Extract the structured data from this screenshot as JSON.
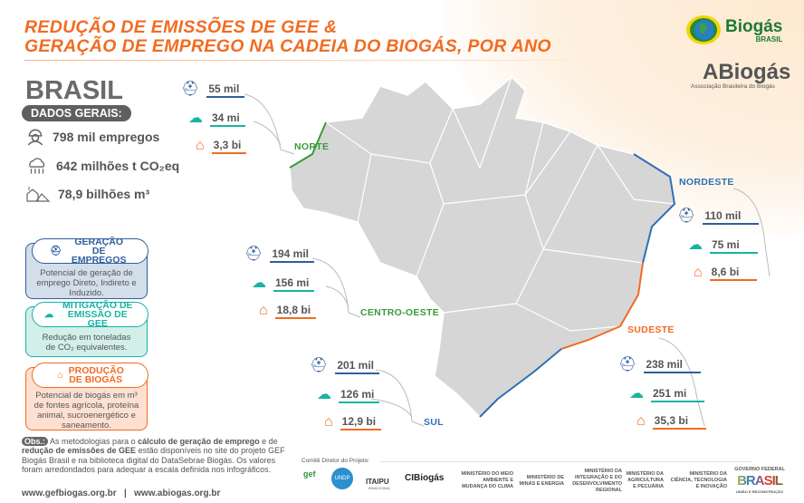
{
  "title": {
    "line1": "REDUÇÃO DE EMISSÕES DE GEE &",
    "line2": "GERAÇÃO DE EMPREGO NA CADEIA DO BIOGÁS, POR ANO"
  },
  "logos": {
    "biogas_brasil": "Biogás",
    "biogas_brasil_sub": "BRASIL",
    "abiogas": "ABiogás",
    "abiogas_sub": "Associação Brasileira do Biogás"
  },
  "brasil": {
    "name": "BRASIL",
    "pill": "DADOS GERAIS:",
    "empregos": "798 mil empregos",
    "co2": "642 milhões t CO₂eq",
    "biogas": "78,9 bilhões m³"
  },
  "legend": [
    {
      "title": "GERAÇÃO DE EMPREGOS",
      "desc": "Potencial de geração de emprego Direto, Indireto e Induzido.",
      "color": "#2f5e9e",
      "bg": "#d3deeb"
    },
    {
      "title": "MITIGAÇÃO DE EMISSÃO DE GEE",
      "desc": "Redução em toneladas de CO₂ equivalentes.",
      "color": "#19b3a4",
      "bg": "#d2efe9"
    },
    {
      "title": "PRODUÇÃO DE BIOGÁS",
      "desc": "Potencial de biogás em m³ de fontes agrícola, proteína animal, sucroenergético e saneamento.",
      "color": "#f26b21",
      "bg": "#fde0d2"
    }
  ],
  "obs": {
    "tag": "Obs.:",
    "text1": " As metodologias para o ",
    "bold1": "cálculo de geração de emprego",
    "text2": " e de ",
    "bold2": "redução de emissões de GEE",
    "text3": " estão disponíveis no site do projeto GEF Biogás Brasil e na biblioteca digital do DataSebrae Biogás. Os valores foram arredondados para adequar a escala definida nos infográficos."
  },
  "urls": {
    "url1": "www.gefbiogas.org.br",
    "sep": "|",
    "url2": "www.abiogas.org.br"
  },
  "regions": {
    "norte": {
      "name": "NORTE",
      "empregos": "55 mil",
      "co2": "34 mi",
      "biogas": "3,3 bi"
    },
    "centro_oeste": {
      "name": "CENTRO-OESTE",
      "empregos": "194 mil",
      "co2": "156 mi",
      "biogas": "18,8 bi"
    },
    "sul": {
      "name": "SUL",
      "empregos": "201 mil",
      "co2": "126 mi",
      "biogas": "12,9 bi"
    },
    "nordeste": {
      "name": "NORDESTE",
      "empregos": "110 mil",
      "co2": "75 mi",
      "biogas": "8,6 bi"
    },
    "sudeste": {
      "name": "SUDESTE",
      "empregos": "238 mil",
      "co2": "251 mi",
      "biogas": "35,3 bi"
    }
  },
  "colors": {
    "orange": "#f26b21",
    "green": "#3a9a3a",
    "blue": "#2f6fb5",
    "teal": "#19b3a4",
    "navy": "#2f5e9e"
  },
  "footer": {
    "comite": "Comitê Diretor do Projeto:",
    "gef": "gef",
    "undp": "UNDP",
    "itaipu": "ITAIPU",
    "itaipu_sub": "BINACIONAL",
    "cibiogas": "CIBiogás",
    "min1": "MINISTÉRIO DO MEIO AMBIENTE E MUDANÇA DO CLIMA",
    "min2": "MINISTÉRIO DE MINAS E ENERGIA",
    "min3": "MINISTÉRIO DA INTEGRAÇÃO E DO DESENVOLVIMENTO REGIONAL",
    "min4": "MINISTÉRIO DA AGRICULTURA E PECUÁRIA",
    "min5": "MINISTÉRIO DA CIÊNCIA, TECNOLOGIA E INOVAÇÃO",
    "gov": "GOVERNO FEDERAL",
    "gov_brasil": "BRASIL",
    "gov_sub": "UNIÃO E RECONSTRUÇÃO"
  }
}
